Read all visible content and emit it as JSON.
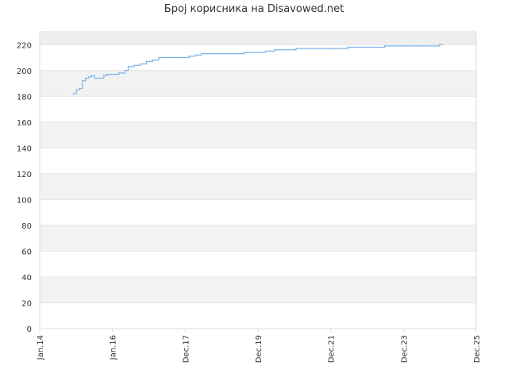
{
  "chart_data": {
    "type": "line",
    "title": "Број корисника на Disavowed.net",
    "xlabel": "",
    "ylabel": "",
    "ylim": [
      0,
      230
    ],
    "yticks": [
      0,
      20,
      40,
      60,
      80,
      100,
      120,
      140,
      160,
      180,
      200,
      220
    ],
    "xlim": [
      "2014-01",
      "2025-12"
    ],
    "xticks": [
      "Jan.14",
      "Jan.16",
      "Dec.17",
      "Dec.19",
      "Dec.21",
      "Dec.23",
      "Dec.25"
    ],
    "grid": "horizontal alternating bands",
    "series": [
      {
        "color": "#7db4e8",
        "x": [
          "2014-12",
          "2015-01",
          "2015-02",
          "2015-03",
          "2015-04",
          "2015-05",
          "2015-06",
          "2015-07",
          "2015-08",
          "2015-09",
          "2015-10",
          "2015-11",
          "2015-12",
          "2016-02",
          "2016-03",
          "2016-05",
          "2016-06",
          "2016-07",
          "2016-08",
          "2016-10",
          "2016-12",
          "2017-02",
          "2017-04",
          "2017-06",
          "2017-12",
          "2018-02",
          "2018-04",
          "2018-06",
          "2019-01",
          "2019-04",
          "2019-08",
          "2019-12",
          "2020-03",
          "2020-06",
          "2021-01",
          "2021-12",
          "2022-06",
          "2022-12",
          "2023-06",
          "2023-12",
          "2024-06",
          "2024-12",
          "2025-01"
        ],
        "y": [
          182,
          185,
          186,
          192,
          194,
          195,
          196,
          194,
          194,
          194,
          196,
          197,
          197,
          197,
          198,
          200,
          203,
          203,
          204,
          205,
          207,
          208,
          210,
          210,
          210,
          211,
          212,
          213,
          213,
          213,
          214,
          214,
          215,
          216,
          217,
          217,
          218,
          218,
          219,
          219,
          219,
          220,
          220
        ]
      }
    ]
  }
}
